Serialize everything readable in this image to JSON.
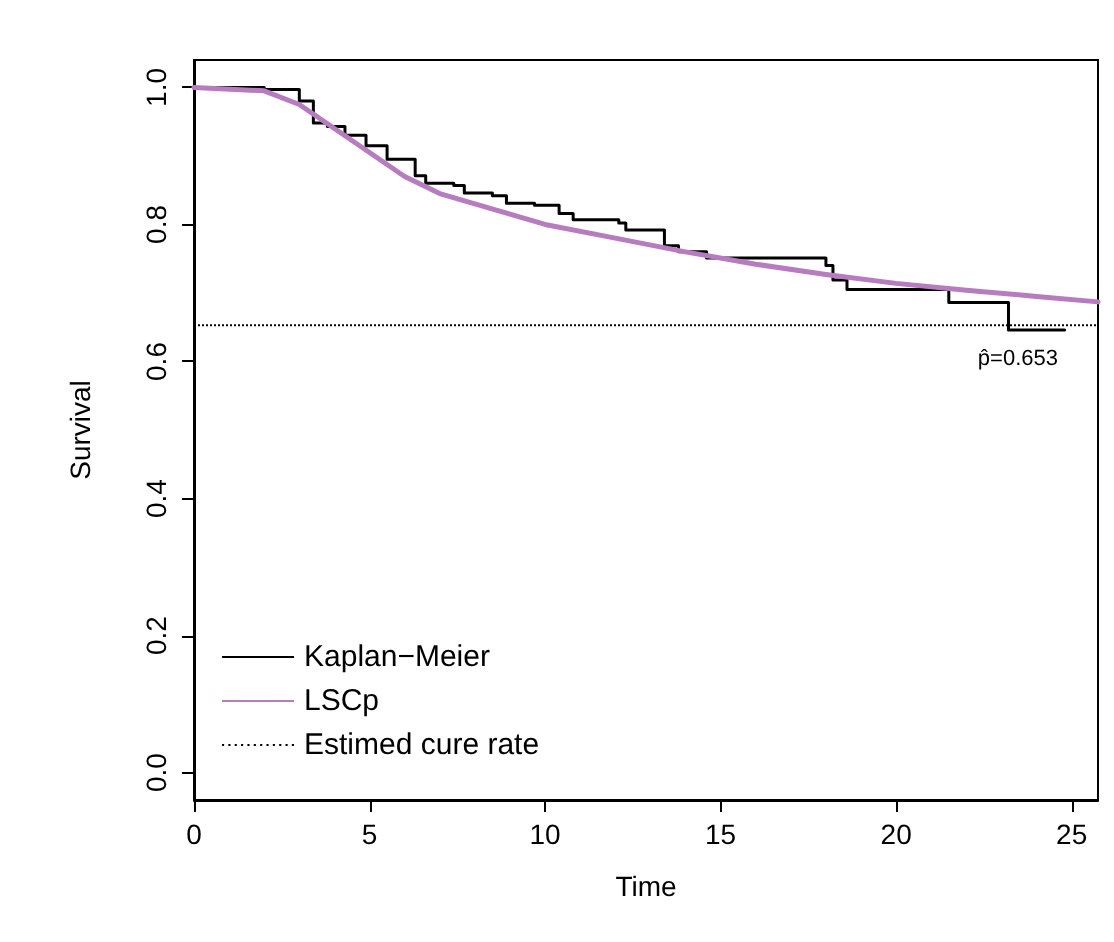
{
  "chart_data": {
    "type": "line",
    "xlabel": "Time",
    "ylabel": "Survival",
    "xlim": [
      0,
      25.75
    ],
    "ylim": [
      -0.04,
      1.04
    ],
    "xticks": [
      0,
      5,
      10,
      15,
      20,
      25
    ],
    "yticks": [
      {
        "value": 0,
        "label": "0.0"
      },
      {
        "value": 0.2,
        "label": "0.2"
      },
      {
        "value": 0.4,
        "label": "0.4"
      },
      {
        "value": 0.6,
        "label": "0.6"
      },
      {
        "value": 0.8,
        "label": "0.8"
      },
      {
        "value": 1,
        "label": "1.0"
      }
    ],
    "grid": false,
    "legend": "bottom left",
    "marker": "none",
    "series": [
      {
        "name": "Kaplan−Meier",
        "type": "step",
        "color": "#000000",
        "x": [
          0,
          2.0,
          3.0,
          3.4,
          3.8,
          4.3,
          4.9,
          5.5,
          6.3,
          6.6,
          7.4,
          7.7,
          8.5,
          8.9,
          9.7,
          10.4,
          10.8,
          12.1,
          12.3,
          13.4,
          13.8,
          14.6,
          18.0,
          18.2,
          18.6,
          21.5,
          23.2,
          24.8
        ],
        "values": [
          1.0,
          0.997,
          0.98,
          0.948,
          0.943,
          0.93,
          0.915,
          0.895,
          0.871,
          0.86,
          0.857,
          0.846,
          0.842,
          0.831,
          0.828,
          0.816,
          0.807,
          0.802,
          0.792,
          0.769,
          0.76,
          0.751,
          0.74,
          0.719,
          0.705,
          0.686,
          0.646,
          0.646
        ]
      },
      {
        "name": "LSCp",
        "color": "#b77bc0",
        "x": [
          0,
          2,
          3,
          4,
          5,
          6,
          7,
          8,
          9,
          10,
          12,
          14,
          16,
          18,
          20,
          22,
          24,
          25.75
        ],
        "values": [
          1.0,
          0.995,
          0.975,
          0.94,
          0.905,
          0.87,
          0.845,
          0.83,
          0.815,
          0.8,
          0.78,
          0.76,
          0.742,
          0.727,
          0.714,
          0.704,
          0.695,
          0.687
        ]
      }
    ],
    "ref_lines": [
      {
        "axis": "y",
        "value": 0.653,
        "label": "Estimed cure rate",
        "color": "#000000",
        "line_style": "dotted"
      }
    ],
    "annotations": [
      "p̂=0.653"
    ]
  }
}
